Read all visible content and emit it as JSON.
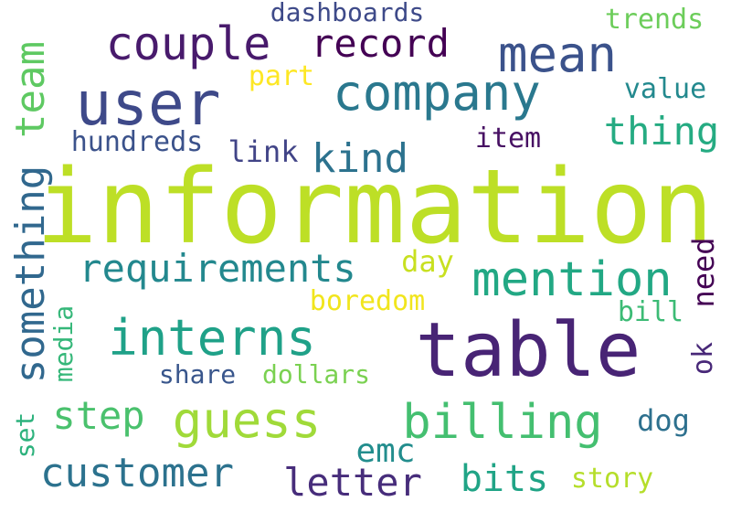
{
  "words": [
    {
      "id": "information",
      "text": "information",
      "color": "#bddf26"
    },
    {
      "id": "table",
      "text": "table",
      "color": "#482475"
    },
    {
      "id": "user",
      "text": "user",
      "color": "#3e4989"
    },
    {
      "id": "company",
      "text": "company",
      "color": "#2a788e"
    },
    {
      "id": "couple",
      "text": "couple",
      "color": "#481a6c"
    },
    {
      "id": "record",
      "text": "record",
      "color": "#440154"
    },
    {
      "id": "mean",
      "text": "mean",
      "color": "#3b528b"
    },
    {
      "id": "mention",
      "text": "mention",
      "color": "#22a884"
    },
    {
      "id": "billing",
      "text": "billing",
      "color": "#44bf70"
    },
    {
      "id": "guess",
      "text": "guess",
      "color": "#a0da39"
    },
    {
      "id": "interns",
      "text": "interns",
      "color": "#1fa188"
    },
    {
      "id": "requirements",
      "text": "requirements",
      "color": "#23888e"
    },
    {
      "id": "something",
      "text": "something",
      "color": "#31688e"
    },
    {
      "id": "team",
      "text": "team",
      "color": "#5ec962"
    },
    {
      "id": "customer",
      "text": "customer",
      "color": "#2c728e"
    },
    {
      "id": "letter",
      "text": "letter",
      "color": "#472d7b"
    },
    {
      "id": "bits",
      "text": "bits",
      "color": "#20a486"
    },
    {
      "id": "step",
      "text": "step",
      "color": "#4ac16d"
    },
    {
      "id": "kind",
      "text": "kind",
      "color": "#2c728e"
    },
    {
      "id": "thing",
      "text": "thing",
      "color": "#25ab82"
    },
    {
      "id": "emc",
      "text": "emc",
      "color": "#228d8d"
    },
    {
      "id": "hundreds",
      "text": "hundreds",
      "color": "#3b528b"
    },
    {
      "id": "link",
      "text": "link",
      "color": "#414487"
    },
    {
      "id": "item",
      "text": "item",
      "color": "#471063"
    },
    {
      "id": "value",
      "text": "value",
      "color": "#23898e"
    },
    {
      "id": "trends",
      "text": "trends",
      "color": "#6ccd5a"
    },
    {
      "id": "dashboards",
      "text": "dashboards",
      "color": "#3e4a89"
    },
    {
      "id": "part",
      "text": "part",
      "color": "#fde725"
    },
    {
      "id": "day",
      "text": "day",
      "color": "#c8e020"
    },
    {
      "id": "boredom",
      "text": "boredom",
      "color": "#f1e51d"
    },
    {
      "id": "need",
      "text": "need",
      "color": "#440154"
    },
    {
      "id": "ok",
      "text": "ok",
      "color": "#482878"
    },
    {
      "id": "bill",
      "text": "bill",
      "color": "#3cbb75"
    },
    {
      "id": "media",
      "text": "media",
      "color": "#35b779"
    },
    {
      "id": "share",
      "text": "share",
      "color": "#39568c"
    },
    {
      "id": "dollars",
      "text": "dollars",
      "color": "#7ad151"
    },
    {
      "id": "dog",
      "text": "dog",
      "color": "#2d708e"
    },
    {
      "id": "set",
      "text": "set",
      "color": "#2db27d"
    },
    {
      "id": "story",
      "text": "story",
      "color": "#b5de2b"
    }
  ]
}
